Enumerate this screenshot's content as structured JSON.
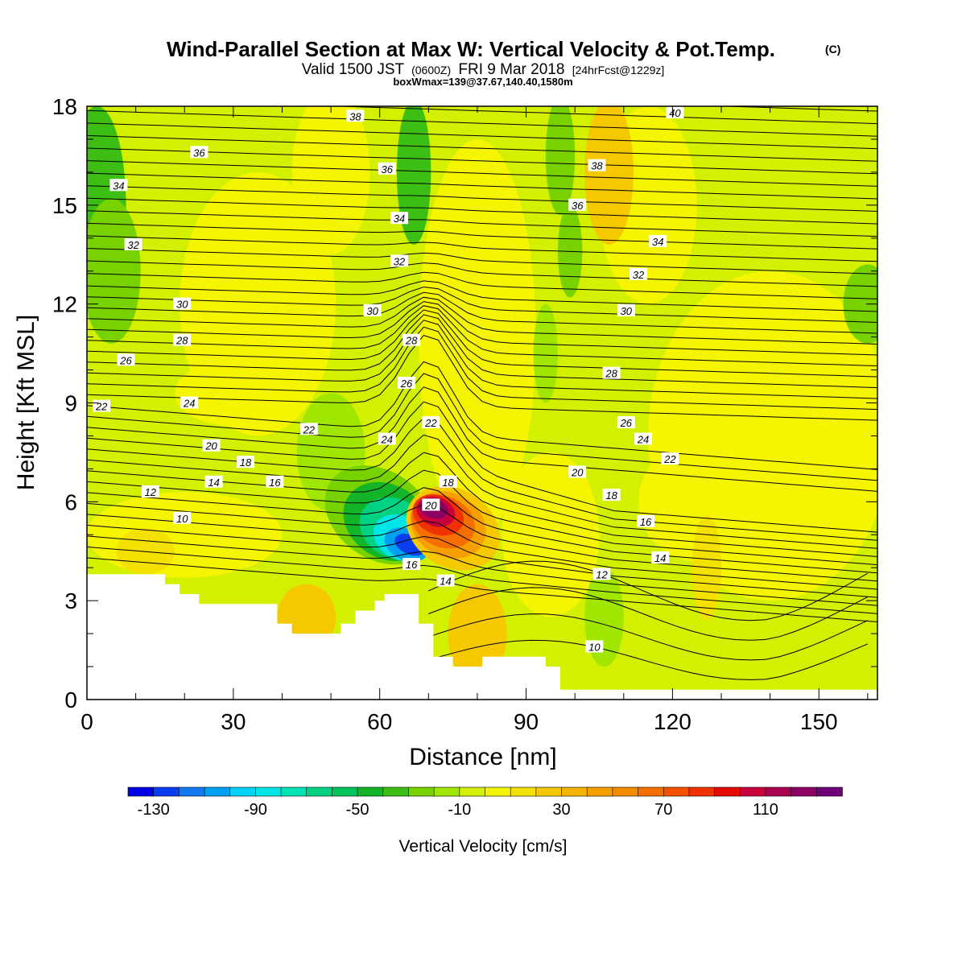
{
  "chart_data": {
    "type": "heatmap",
    "title": "Wind-Parallel Section at Max W: Vertical Velocity & Pot.Temp.",
    "title_mark": "(C)",
    "subtitle": {
      "prefix": "Valid 1500 JST",
      "utc": "(0600Z)",
      "date": "FRI 9 Mar 2018",
      "run": "[24hrFcst@1229z]"
    },
    "box_label": "boxWmax=139@37.67,140.40,1580m",
    "xlabel": "Distance [nm]",
    "ylabel": "Height [Kft MSL]",
    "xlim": [
      0,
      162
    ],
    "ylim": [
      0,
      18
    ],
    "x_ticks": [
      "0",
      "30",
      "60",
      "90",
      "120",
      "150"
    ],
    "y_ticks": [
      "0",
      "3",
      "6",
      "9",
      "12",
      "15",
      "18"
    ],
    "colorbar": {
      "label": "Vertical Velocity [cm/s]",
      "tick_labels": [
        "-130",
        "-90",
        "-50",
        "-10",
        "30",
        "70",
        "110"
      ],
      "levels": [
        -140,
        -130,
        -120,
        -110,
        -100,
        -90,
        -80,
        -70,
        -60,
        -50,
        -40,
        -30,
        -20,
        -10,
        0,
        10,
        20,
        30,
        40,
        50,
        60,
        70,
        80,
        90,
        100,
        110,
        120,
        130,
        140
      ],
      "colors": [
        "#0000e6",
        "#0a3cf0",
        "#1478f0",
        "#00a0f0",
        "#00d2f5",
        "#00e6e6",
        "#00e1b4",
        "#00d282",
        "#00c35a",
        "#14b428",
        "#3cbe14",
        "#78d200",
        "#a0e600",
        "#d2f000",
        "#f5f500",
        "#f5e100",
        "#f5c800",
        "#f5b400",
        "#f5a000",
        "#f58c00",
        "#f56e00",
        "#f55000",
        "#f03200",
        "#e60a00",
        "#c8003c",
        "#aa0050",
        "#8c0064",
        "#6e0078"
      ]
    },
    "theta_contour_labels": [
      {
        "text": "38",
        "x": 55,
        "z": 17.7
      },
      {
        "text": "40",
        "x": 120.5,
        "z": 17.8
      },
      {
        "text": "36",
        "x": 23,
        "z": 16.6
      },
      {
        "text": "36",
        "x": 61.5,
        "z": 16.1
      },
      {
        "text": "38",
        "x": 104.5,
        "z": 16.2
      },
      {
        "text": "34",
        "x": 6.5,
        "z": 15.6
      },
      {
        "text": "36",
        "x": 100.5,
        "z": 15
      },
      {
        "text": "34",
        "x": 64,
        "z": 14.6
      },
      {
        "text": "34",
        "x": 117,
        "z": 13.9
      },
      {
        "text": "32",
        "x": 9.5,
        "z": 13.8
      },
      {
        "text": "32",
        "x": 64,
        "z": 13.3
      },
      {
        "text": "32",
        "x": 113,
        "z": 12.9
      },
      {
        "text": "30",
        "x": 19.5,
        "z": 12
      },
      {
        "text": "30",
        "x": 58.5,
        "z": 11.8
      },
      {
        "text": "30",
        "x": 110.5,
        "z": 11.8
      },
      {
        "text": "28",
        "x": 19.5,
        "z": 10.9
      },
      {
        "text": "28",
        "x": 66.5,
        "z": 10.9
      },
      {
        "text": "26",
        "x": 8,
        "z": 10.3
      },
      {
        "text": "28",
        "x": 107.5,
        "z": 9.9
      },
      {
        "text": "26",
        "x": 65.5,
        "z": 9.6
      },
      {
        "text": "22",
        "x": 3,
        "z": 8.9
      },
      {
        "text": "24",
        "x": 21,
        "z": 9
      },
      {
        "text": "26",
        "x": 110.5,
        "z": 8.4
      },
      {
        "text": "22",
        "x": 45.5,
        "z": 8.2
      },
      {
        "text": "22",
        "x": 70.5,
        "z": 8.4
      },
      {
        "text": "24",
        "x": 61.5,
        "z": 7.9
      },
      {
        "text": "24",
        "x": 114,
        "z": 7.9
      },
      {
        "text": "20",
        "x": 25.5,
        "z": 7.7
      },
      {
        "text": "22",
        "x": 119.5,
        "z": 7.3
      },
      {
        "text": "18",
        "x": 32.5,
        "z": 7.2
      },
      {
        "text": "18",
        "x": 74,
        "z": 6.6
      },
      {
        "text": "20",
        "x": 100.5,
        "z": 6.9
      },
      {
        "text": "14",
        "x": 26,
        "z": 6.6
      },
      {
        "text": "16",
        "x": 38.5,
        "z": 6.6
      },
      {
        "text": "12",
        "x": 13,
        "z": 6.3
      },
      {
        "text": "18",
        "x": 107.5,
        "z": 6.2
      },
      {
        "text": "20",
        "x": 70.5,
        "z": 5.9
      },
      {
        "text": "10",
        "x": 19.5,
        "z": 5.5
      },
      {
        "text": "16",
        "x": 114.5,
        "z": 5.4
      },
      {
        "text": "14",
        "x": 117.5,
        "z": 4.3
      },
      {
        "text": "16",
        "x": 66.5,
        "z": 4.1
      },
      {
        "text": "12",
        "x": 105.5,
        "z": 3.8
      },
      {
        "text": "14",
        "x": 73.5,
        "z": 3.6
      },
      {
        "text": "10",
        "x": 104,
        "z": 1.6
      }
    ],
    "terrain": [
      [
        0,
        3.8
      ],
      [
        16,
        3.8
      ],
      [
        16,
        3.5
      ],
      [
        19,
        3.5
      ],
      [
        19,
        3.2
      ],
      [
        23,
        3.2
      ],
      [
        23,
        2.9
      ],
      [
        39,
        2.9
      ],
      [
        39,
        2.3
      ],
      [
        42,
        2.3
      ],
      [
        42,
        2
      ],
      [
        52,
        2
      ],
      [
        52,
        2.3
      ],
      [
        55,
        2.3
      ],
      [
        55,
        2.7
      ],
      [
        59,
        2.7
      ],
      [
        59,
        3
      ],
      [
        61,
        3
      ],
      [
        61,
        3.2
      ],
      [
        68,
        3.2
      ],
      [
        68,
        2.3
      ],
      [
        71,
        2.3
      ],
      [
        71,
        1.3
      ],
      [
        75,
        1.3
      ],
      [
        75,
        1
      ],
      [
        81,
        1
      ],
      [
        81,
        1.3
      ],
      [
        94,
        1.3
      ],
      [
        94,
        1
      ],
      [
        97,
        1
      ],
      [
        97,
        0.3
      ],
      [
        162,
        0.3
      ]
    ],
    "legend": "colorbar-bottom",
    "grid": false
  }
}
